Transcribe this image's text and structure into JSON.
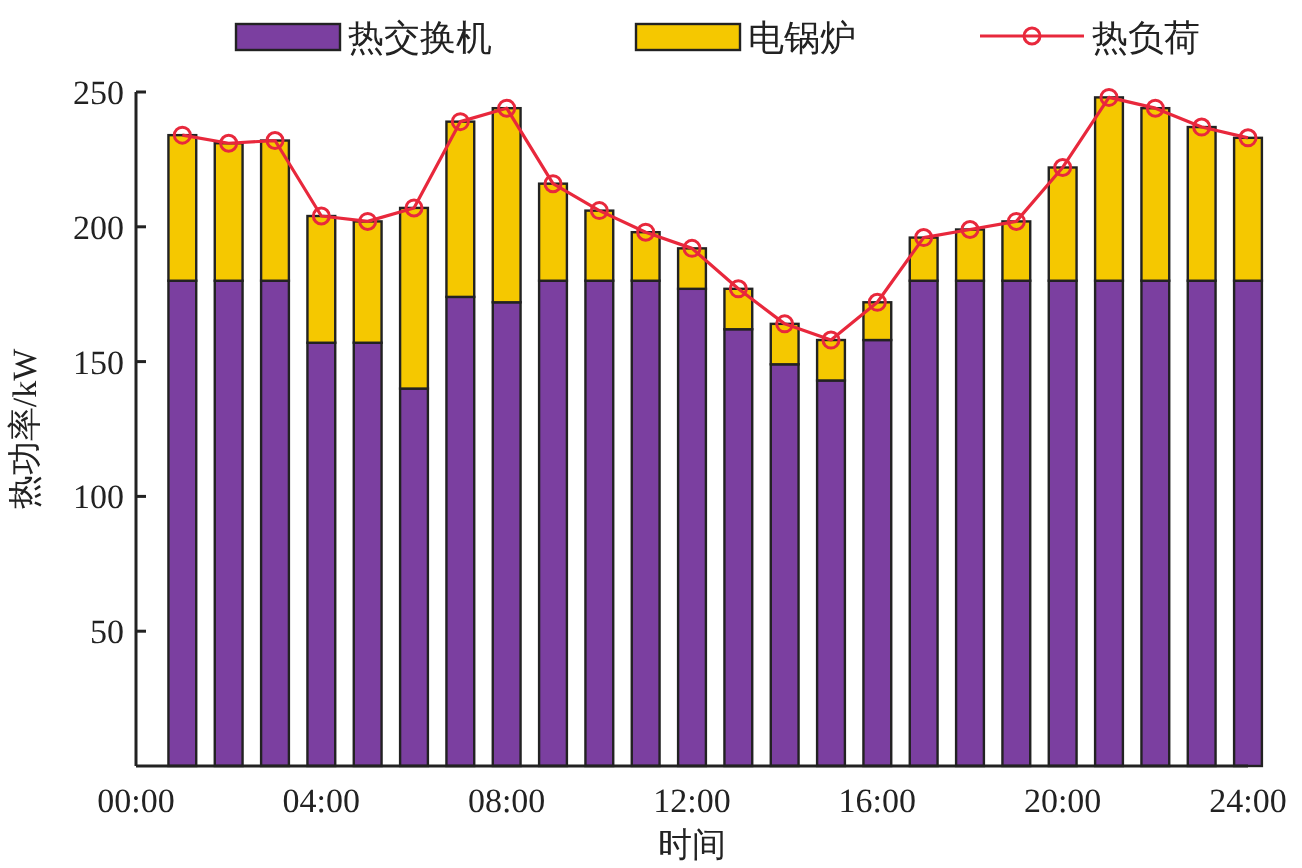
{
  "chart_data": {
    "type": "bar",
    "stacked": true,
    "xlabel": "时间",
    "ylabel": "热功率/kW",
    "x": [
      1,
      2,
      3,
      4,
      5,
      6,
      7,
      8,
      9,
      10,
      11,
      12,
      13,
      14,
      15,
      16,
      17,
      18,
      19,
      20,
      21,
      22,
      23,
      24
    ],
    "xlim": [
      0,
      24
    ],
    "xticks": [
      {
        "value": 0,
        "label": "00:00"
      },
      {
        "value": 4,
        "label": "04:00"
      },
      {
        "value": 8,
        "label": "08:00"
      },
      {
        "value": 12,
        "label": "12:00"
      },
      {
        "value": 16,
        "label": "16:00"
      },
      {
        "value": 20,
        "label": "20:00"
      },
      {
        "value": 24,
        "label": "24:00"
      }
    ],
    "ylim": [
      0,
      250
    ],
    "yticks": [
      50,
      100,
      150,
      200,
      250
    ],
    "legend": "top",
    "grid": false,
    "marker": "circle",
    "series": [
      {
        "name": "热交换机",
        "color": "#7b3fa0",
        "values": [
          180,
          180,
          180,
          157,
          157,
          140,
          174,
          172,
          180,
          180,
          180,
          177,
          162,
          149,
          143,
          158,
          180,
          180,
          180,
          180,
          180,
          180,
          180,
          180
        ]
      },
      {
        "name": "电锅炉",
        "color": "#f5c800",
        "values": [
          54,
          51,
          52,
          47,
          45,
          67,
          65,
          72,
          36,
          26,
          18,
          15,
          15,
          15,
          15,
          14,
          16,
          19,
          22,
          42,
          68,
          64,
          57,
          53
        ]
      },
      {
        "name": "热负荷",
        "type": "line",
        "color": "#e8283c",
        "values": [
          234,
          231,
          232,
          204,
          202,
          207,
          239,
          244,
          216,
          206,
          198,
          192,
          177,
          164,
          158,
          172,
          196,
          199,
          202,
          222,
          248,
          244,
          237,
          233
        ]
      }
    ]
  }
}
